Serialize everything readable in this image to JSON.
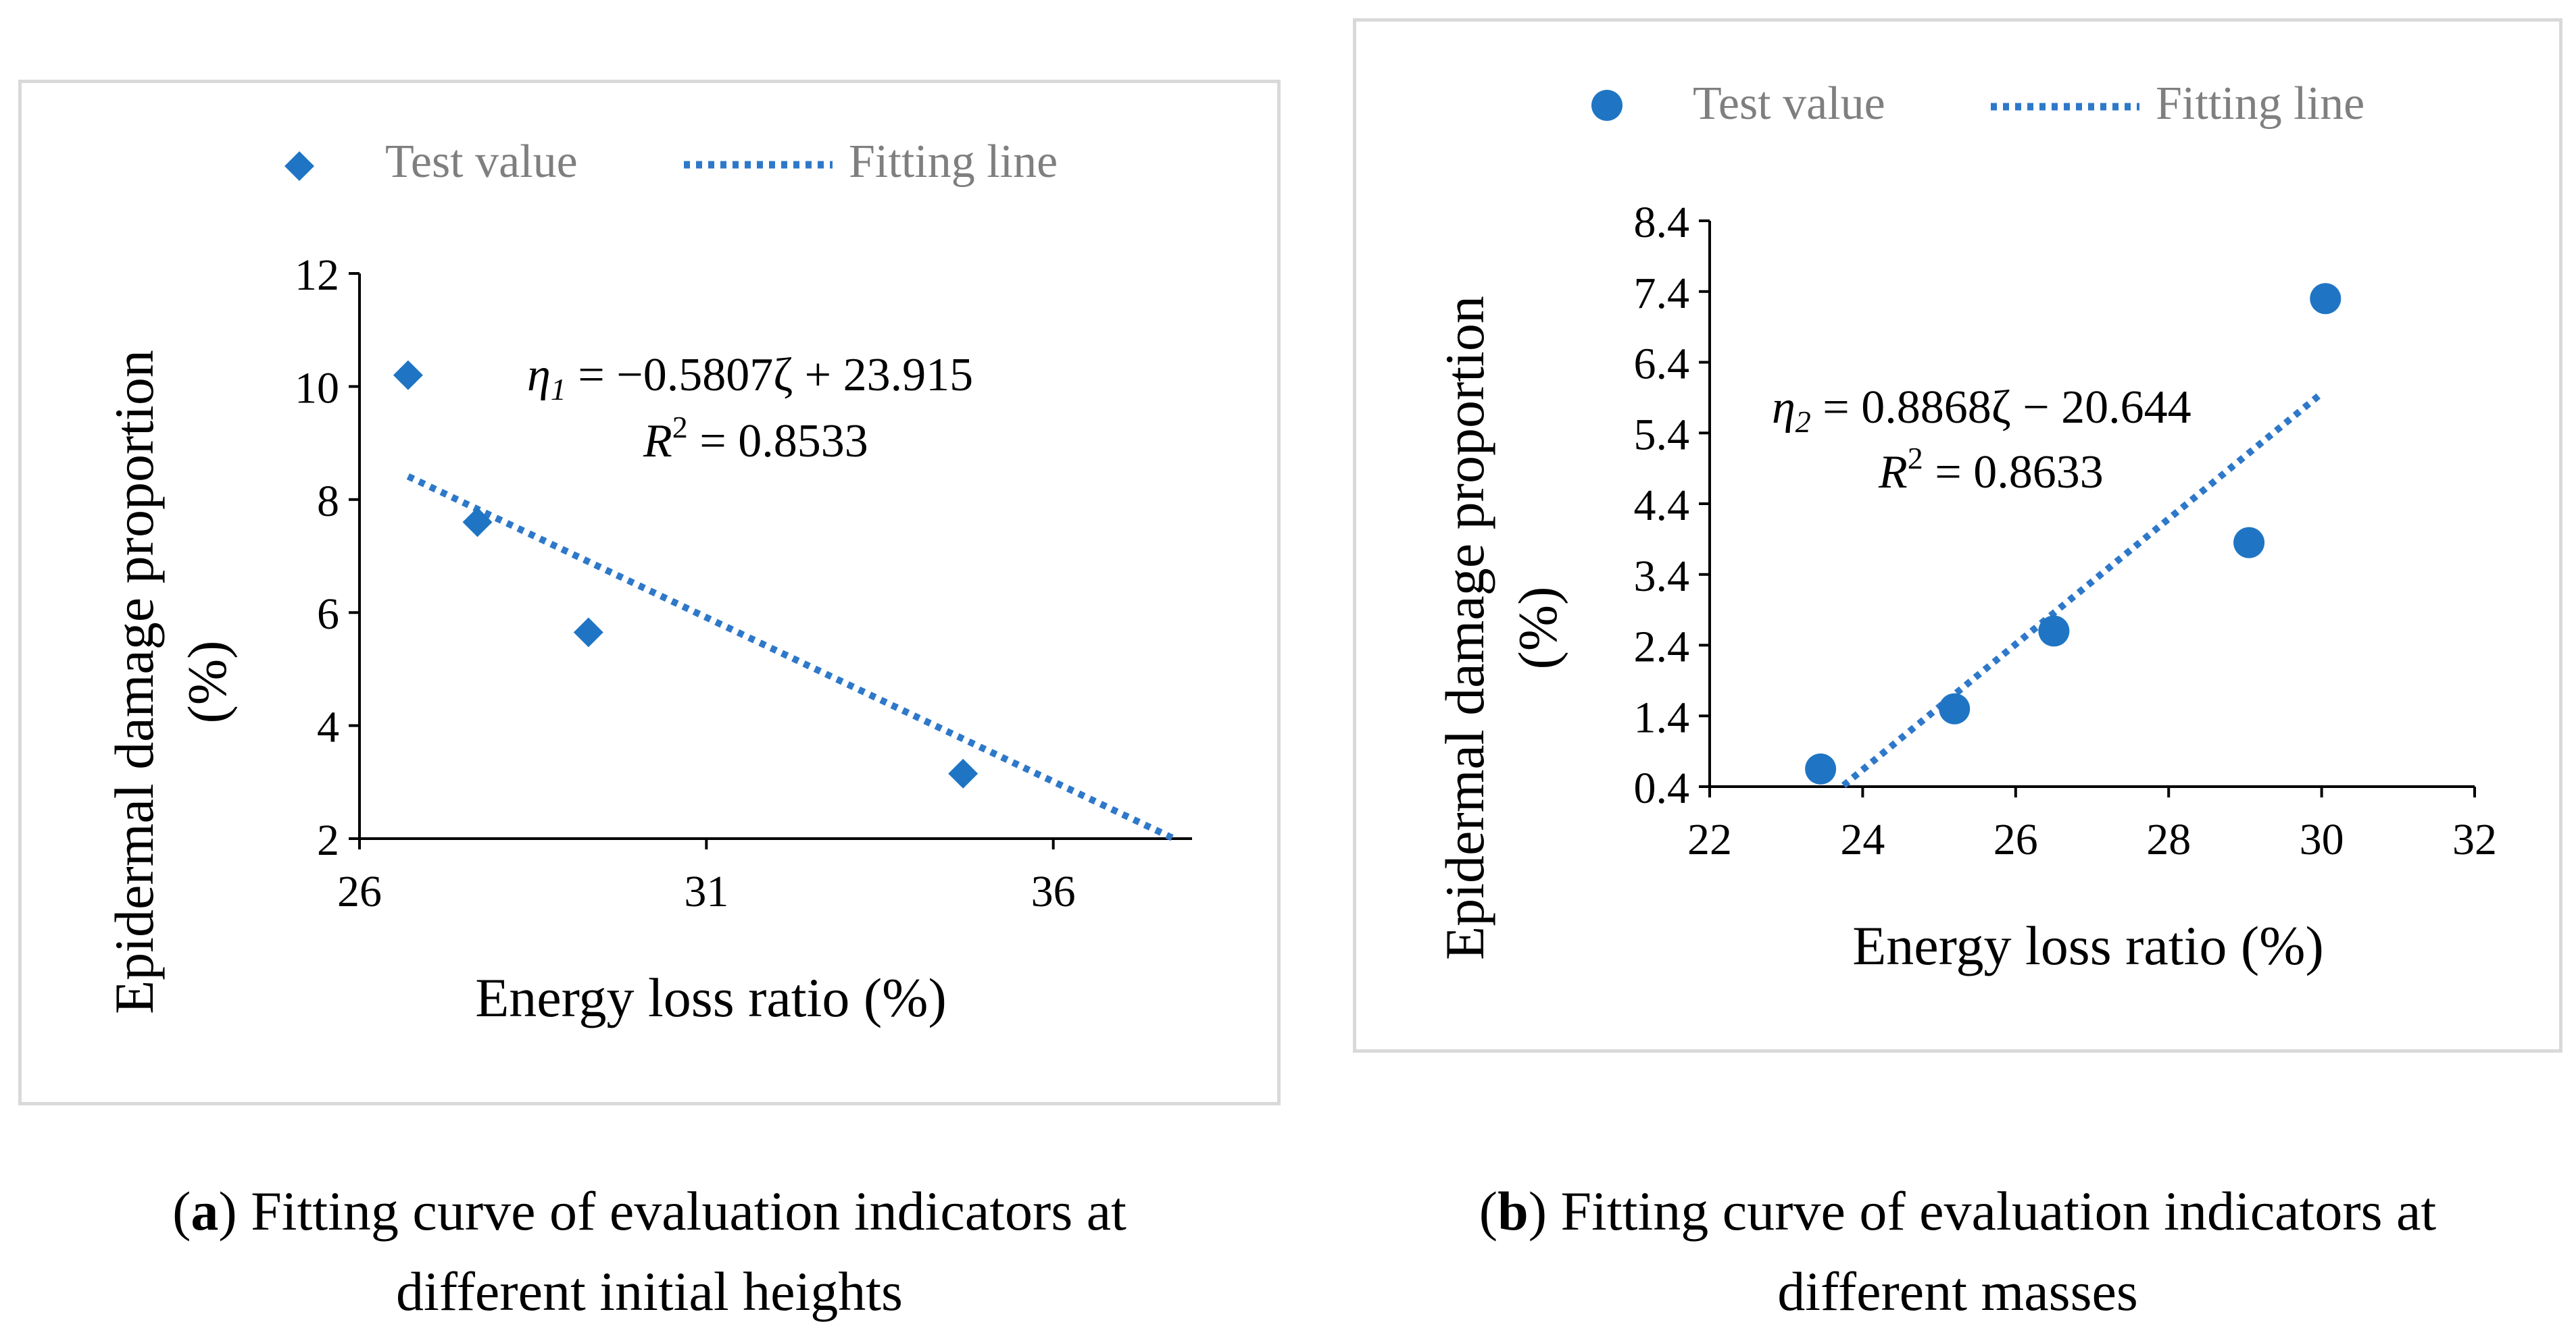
{
  "colors": {
    "marker": "#1F75C4",
    "fit": "#2E78C9",
    "axis": "#000000",
    "legend_text": "#7f7f7f"
  },
  "chart_data": [
    {
      "id": "a",
      "type": "scatter",
      "marker": "diamond",
      "xlabel": "Energy loss ratio (%)",
      "ylabel_line1": "Epidermal damage proportion",
      "ylabel_line2": "(%)",
      "xlim": [
        26,
        38
      ],
      "ylim": [
        2,
        12
      ],
      "xticks": [
        26,
        31,
        36
      ],
      "xtick_labels": [
        "26",
        "31",
        "36"
      ],
      "yticks": [
        2,
        4,
        6,
        8,
        10,
        12
      ],
      "ytick_labels": [
        "2",
        "4",
        "6",
        "8",
        "10",
        "12"
      ],
      "points": [
        [
          26.7,
          10.2
        ],
        [
          27.7,
          7.6
        ],
        [
          29.3,
          5.65
        ],
        [
          34.7,
          3.15
        ]
      ],
      "fit": {
        "slope": -0.5807,
        "intercept": 23.915,
        "x_range": [
          26.7,
          37.75
        ]
      },
      "equation": {
        "sym": "η",
        "sub": "1",
        "rhs": " = −0.5807ζ + 23.915",
        "r2_sym": "R",
        "r2_sup": "2",
        "r2_rhs": " = 0.8533"
      },
      "legend": {
        "marker_label": "Test value",
        "line_label": "Fitting line"
      },
      "caption": {
        "tag": "a",
        "line1": ") Fitting curve of evaluation indicators at",
        "line2": "different initial heights"
      }
    },
    {
      "id": "b",
      "type": "scatter",
      "marker": "circle",
      "xlabel": "Energy loss ratio (%)",
      "ylabel_line1": "Epidermal damage proportion",
      "ylabel_line2": "(%)",
      "xlim": [
        22,
        32
      ],
      "ylim": [
        0.4,
        8.4
      ],
      "xticks": [
        22,
        24,
        26,
        28,
        30,
        32
      ],
      "xtick_labels": [
        "22",
        "24",
        "26",
        "28",
        "30",
        "32"
      ],
      "yticks": [
        0.4,
        1.4,
        2.4,
        3.4,
        4.4,
        5.4,
        6.4,
        7.4,
        8.4
      ],
      "ytick_labels": [
        "0.4",
        "1.4",
        "2.4",
        "3.4",
        "4.4",
        "5.4",
        "6.4",
        "7.4",
        "8.4"
      ],
      "points": [
        [
          23.45,
          0.65
        ],
        [
          25.2,
          1.5
        ],
        [
          26.5,
          2.6
        ],
        [
          29.05,
          3.85
        ],
        [
          30.05,
          7.3
        ]
      ],
      "fit": {
        "slope": 0.8868,
        "intercept": -20.644,
        "x_range": [
          23.75,
          30.0
        ]
      },
      "equation": {
        "sym": "η",
        "sub": "2",
        "rhs": " = 0.8868ζ − 20.644",
        "r2_sym": "R",
        "r2_sup": "2",
        "r2_rhs": " = 0.8633"
      },
      "legend": {
        "marker_label": "Test value",
        "line_label": "Fitting line"
      },
      "caption": {
        "tag": "b",
        "line1": ") Fitting curve of evaluation indicators at",
        "line2": "different masses"
      }
    }
  ]
}
